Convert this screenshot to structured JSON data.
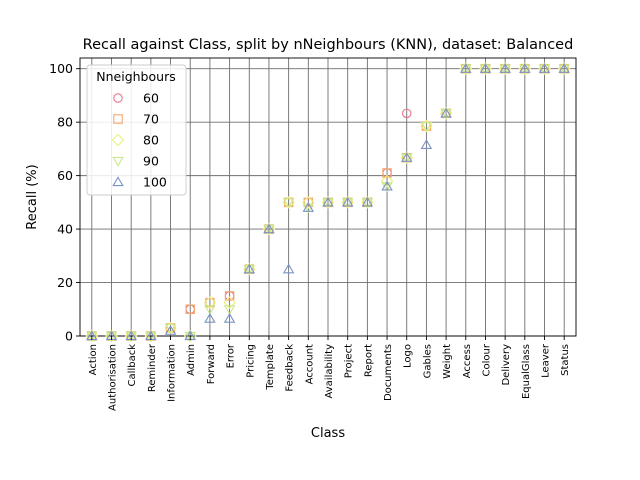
{
  "chart_data": {
    "type": "scatter",
    "title": "Recall against Class, split by nNeighbours (KNN), dataset: Balanced",
    "xlabel": "Class",
    "ylabel": "Recall (%)",
    "ylim": [
      0,
      104
    ],
    "yticks": [
      0,
      20,
      40,
      60,
      80,
      100
    ],
    "grid": true,
    "legend_title": "Nneighbours",
    "legend_position": "upper-left",
    "categories": [
      "Action",
      "Authorisation",
      "Callback",
      "Reminder",
      "Information",
      "Admin",
      "Forward",
      "Error",
      "Pricing",
      "Template",
      "Feedback",
      "Account",
      "Availability",
      "Project",
      "Report",
      "Documents",
      "Logo",
      "Gables",
      "Weight",
      "Access",
      "Colour",
      "Delivery",
      "EqualGlass",
      "Leaver",
      "Status"
    ],
    "series": [
      {
        "name": "60",
        "marker": "circle",
        "color": "#e8738b",
        "values": [
          0,
          0,
          0,
          0,
          3,
          10,
          12.5,
          15,
          25,
          40,
          50,
          50,
          50,
          50,
          50,
          61,
          83.3,
          78.5,
          83.3,
          100,
          100,
          100,
          100,
          100,
          100
        ]
      },
      {
        "name": "70",
        "marker": "square",
        "color": "#f5a66a",
        "values": [
          0,
          0,
          0,
          0,
          3,
          10,
          12.5,
          15,
          25,
          40,
          50,
          50,
          50,
          50,
          50,
          61,
          66.7,
          78.5,
          83.3,
          100,
          100,
          100,
          100,
          100,
          100
        ]
      },
      {
        "name": "80",
        "marker": "diamond",
        "color": "#eef07a",
        "values": [
          0,
          0,
          0,
          0,
          3,
          0,
          12.5,
          12.5,
          25,
          40,
          50,
          50,
          50,
          50,
          50,
          58,
          66.7,
          78.5,
          83.3,
          100,
          100,
          100,
          100,
          100,
          100
        ]
      },
      {
        "name": "90",
        "marker": "triangle-down",
        "color": "#c8e88a",
        "values": [
          0,
          0,
          0,
          0,
          3,
          0,
          10,
          10,
          25,
          40,
          50,
          48,
          50,
          50,
          50,
          56,
          66.7,
          78.5,
          83.3,
          100,
          100,
          100,
          100,
          100,
          100
        ]
      },
      {
        "name": "100",
        "marker": "triangle-up",
        "color": "#7b93c9",
        "values": [
          0,
          0,
          0,
          0,
          2,
          0,
          6.5,
          6.5,
          25,
          40,
          25,
          48,
          50,
          50,
          50,
          56,
          66.7,
          71.5,
          83.3,
          100,
          100,
          100,
          100,
          100,
          100
        ]
      }
    ]
  }
}
